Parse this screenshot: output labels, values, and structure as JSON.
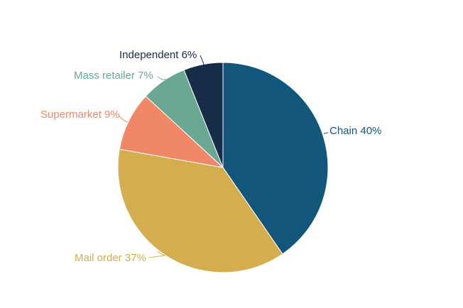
{
  "chart_data": {
    "type": "pie",
    "title": "",
    "slices": [
      {
        "label": "Chain",
        "value": 40,
        "display": "Chain 40%",
        "color": "#12577b"
      },
      {
        "label": "Mail order",
        "value": 37,
        "display": "Mail order 37%",
        "color": "#d4ad4e"
      },
      {
        "label": "Supermarket",
        "value": 9,
        "display": "Supermarket 9%",
        "color": "#f08868"
      },
      {
        "label": "Mass retailer",
        "value": 7,
        "display": "Mass retailer 7%",
        "color": "#6aa893"
      },
      {
        "label": "Independent",
        "value": 6,
        "display": "Independent 6%",
        "color": "#172c47"
      }
    ],
    "start_angle_deg": 0,
    "direction": "clockwise",
    "slice_separator_color": "#ffffff"
  }
}
